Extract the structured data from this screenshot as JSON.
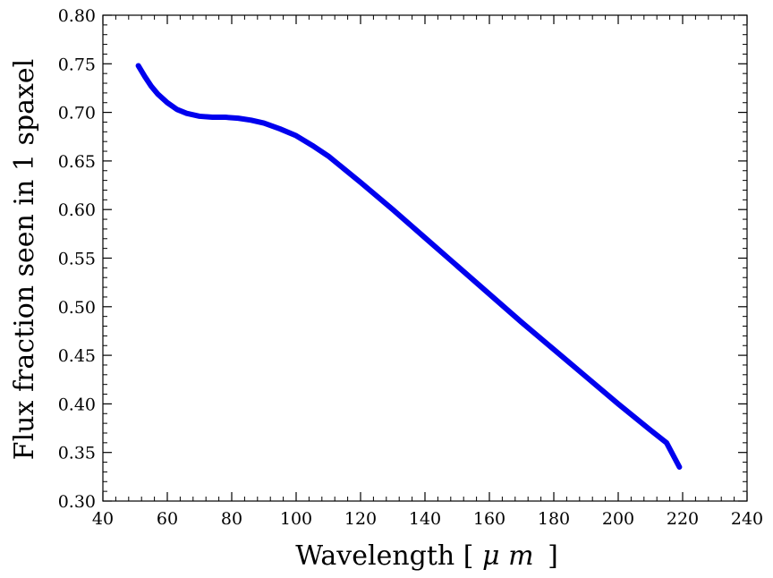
{
  "chart_data": {
    "type": "line",
    "title": "",
    "xlabel": "Wavelength [$\\mu\\,m$]",
    "xlabel_parts": {
      "prefix": "Wavelength [",
      "mu": "μ",
      "m": "m",
      "suffix": "]"
    },
    "ylabel": "Flux fraction seen in 1 spaxel",
    "xlim": [
      40,
      240
    ],
    "ylim": [
      0.3,
      0.8
    ],
    "x_ticks": [
      40,
      60,
      80,
      100,
      120,
      140,
      160,
      180,
      200,
      220,
      240
    ],
    "y_ticks": [
      0.3,
      0.35,
      0.4,
      0.45,
      0.5,
      0.55,
      0.6,
      0.65,
      0.7,
      0.75,
      0.8
    ],
    "x_tick_labels": [
      "40",
      "60",
      "80",
      "100",
      "120",
      "140",
      "160",
      "180",
      "200",
      "220",
      "240"
    ],
    "y_tick_labels": [
      "0.30",
      "0.35",
      "0.40",
      "0.45",
      "0.50",
      "0.55",
      "0.60",
      "0.65",
      "0.70",
      "0.75",
      "0.80"
    ],
    "grid": false,
    "series": [
      {
        "color": "#0000ee",
        "x": [
          51,
          53,
          55,
          57,
          60,
          63,
          66,
          70,
          74,
          78,
          82,
          86,
          90,
          95,
          100,
          105,
          110,
          120,
          130,
          140,
          150,
          160,
          170,
          180,
          190,
          200,
          210,
          215,
          219
        ],
        "y": [
          0.748,
          0.737,
          0.727,
          0.719,
          0.71,
          0.703,
          0.699,
          0.696,
          0.695,
          0.695,
          0.694,
          0.692,
          0.689,
          0.683,
          0.676,
          0.666,
          0.655,
          0.628,
          0.6,
          0.571,
          0.542,
          0.513,
          0.484,
          0.456,
          0.428,
          0.4,
          0.373,
          0.36,
          0.335
        ]
      }
    ]
  }
}
